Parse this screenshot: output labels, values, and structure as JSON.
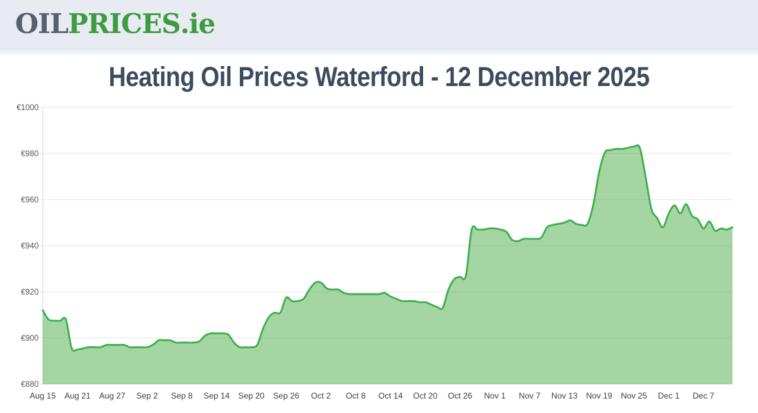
{
  "header": {
    "logo": {
      "oil": "OIL",
      "prices": "PRICES",
      "domain": ".ie"
    }
  },
  "title": "Heating Oil Prices Waterford - 12 December 2025",
  "colors": {
    "header_bg": "#e9ebf2",
    "logo_gray": "#57606e",
    "logo_green": "#3e9b41",
    "title_color": "#3c4b5d",
    "line_green": "#3bae49",
    "fill_green": "rgba(73,172,72,0.5)",
    "gridline": "#e4e4e4",
    "axis_line": "#d6d6d6"
  },
  "chart_data": {
    "type": "area",
    "title": "Heating Oil Prices Waterford - 12 December 2025",
    "xlabel": "",
    "ylabel": "",
    "currency_prefix": "€",
    "ylim": [
      880,
      1000
    ],
    "y_tick_step": 20,
    "y_tick_labels": [
      "€1000",
      "€980",
      "€960",
      "€940",
      "€920",
      "€900",
      "€880"
    ],
    "x_tick_labels": [
      "Aug 15",
      "Aug 21",
      "Aug 27",
      "Sep 2",
      "Sep 8",
      "Sep 14",
      "Sep 20",
      "Sep 26",
      "Oct 2",
      "Oct 8",
      "Oct 14",
      "Oct 20",
      "Oct 26",
      "Nov 1",
      "Nov 7",
      "Nov 13",
      "Nov 19",
      "Nov 25",
      "Dec 1",
      "Dec 7"
    ],
    "x_tick_every_n_points": 6,
    "date_range": {
      "start": "Aug 15",
      "end": "Dec 12"
    },
    "grid": true,
    "legend": false,
    "line_color": "#3bae49",
    "fill_color": "rgba(73,172,72,0.5)",
    "values": [
      912,
      908,
      907.5,
      907.5,
      908,
      895.5,
      895,
      895.5,
      896,
      896,
      896,
      897,
      897,
      897,
      897,
      896,
      896,
      896,
      896,
      897,
      899,
      899,
      899,
      898,
      898,
      898,
      898,
      898.5,
      901,
      902,
      902,
      902,
      901.5,
      898,
      896,
      896,
      896,
      897,
      904,
      909,
      911,
      911,
      917.5,
      916,
      916,
      917,
      921,
      924,
      924,
      921.5,
      921,
      921,
      919.5,
      919,
      919,
      919,
      919,
      919,
      919,
      919.5,
      918,
      917,
      916,
      916,
      916,
      915.5,
      915.5,
      914.5,
      913.5,
      913,
      921,
      925.5,
      926.5,
      927,
      947,
      947,
      947,
      947.5,
      947.5,
      947,
      946,
      942.5,
      942,
      943,
      943,
      943,
      943.5,
      948,
      949,
      949.5,
      950,
      951,
      949.5,
      949,
      949.5,
      958,
      972,
      980.5,
      981.5,
      982,
      982,
      982.5,
      983,
      982.5,
      970,
      956,
      952,
      948,
      954,
      957.5,
      954,
      958,
      953,
      951.5,
      947.5,
      950.5,
      946.5,
      947.5,
      947,
      948
    ]
  }
}
